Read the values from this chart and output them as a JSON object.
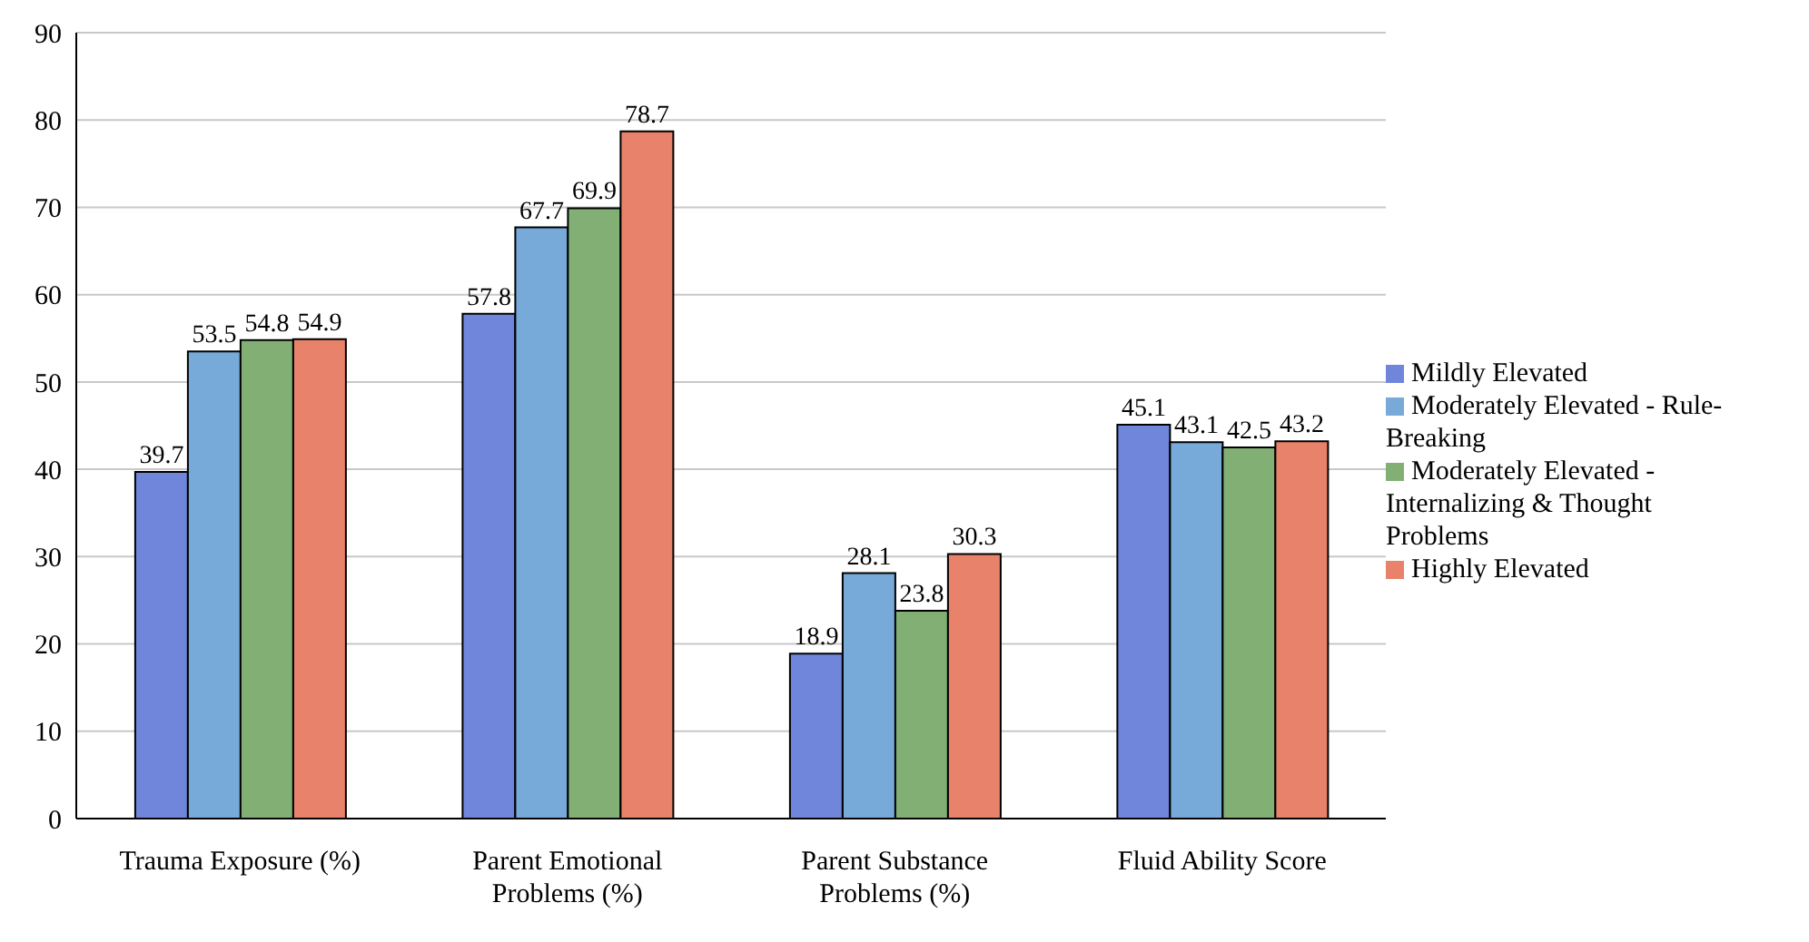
{
  "chart_data": {
    "type": "bar",
    "categories": [
      "Trauma Exposure (%)",
      "Parent Emotional Problems (%)",
      "Parent Substance Problems (%)",
      "Fluid Ability Score"
    ],
    "series": [
      {
        "name": "Mildly Elevated",
        "color": "#6f86db",
        "values": [
          39.7,
          57.8,
          18.9,
          45.1
        ]
      },
      {
        "name": "Moderately Elevated - Rule-Breaking",
        "color": "#77aad9",
        "values": [
          53.5,
          67.7,
          28.1,
          43.1
        ]
      },
      {
        "name": "Moderately Elevated - Internalizing & Thought Problems",
        "color": "#82b074",
        "values": [
          54.8,
          69.9,
          23.8,
          42.5
        ]
      },
      {
        "name": "Highly Elevated",
        "color": "#e8826a",
        "values": [
          54.9,
          78.7,
          30.3,
          43.2
        ]
      }
    ],
    "ylim": [
      0,
      90
    ],
    "yticks": [
      0,
      10,
      20,
      30,
      40,
      50,
      60,
      70,
      80,
      90
    ],
    "grid": "y",
    "legend": "right",
    "data_labels": true
  }
}
